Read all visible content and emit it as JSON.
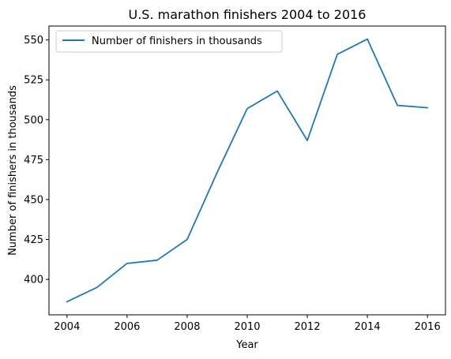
{
  "chart_data": {
    "type": "line",
    "title": "U.S. marathon finishers 2004 to 2016",
    "xlabel": "Year",
    "ylabel": "Number of finishers in thousands",
    "x": [
      2004,
      2005,
      2006,
      2007,
      2008,
      2009,
      2010,
      2011,
      2012,
      2013,
      2014,
      2015,
      2016
    ],
    "series": [
      {
        "name": "Number of finishers in thousands",
        "values": [
          386,
          395,
          410,
          412,
          425,
          467,
          507,
          518,
          487,
          541,
          550.5,
          509,
          507.5
        ],
        "color": "#1f77b4"
      }
    ],
    "xticks": [
      2004,
      2006,
      2008,
      2010,
      2012,
      2014,
      2016
    ],
    "yticks": [
      400,
      425,
      450,
      475,
      500,
      525,
      550
    ],
    "xlim": [
      2003.4,
      2016.6
    ],
    "ylim": [
      377.8,
      558.7
    ],
    "grid": false,
    "legend": "top-left"
  }
}
